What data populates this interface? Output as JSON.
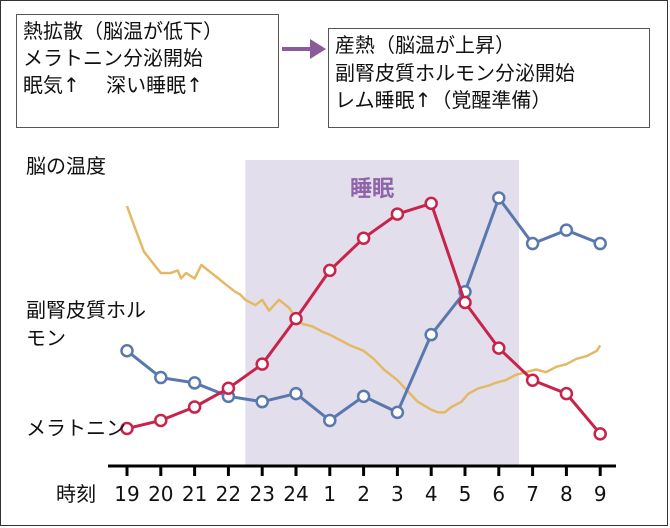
{
  "box_left": {
    "lines": [
      "熱拡散（脳温が低下）",
      "メラトニン分泌開始",
      "眠気↑　 深い睡眠↑"
    ]
  },
  "box_right": {
    "lines": [
      "産熱（脳温が上昇）",
      "副腎皮質ホルモン分泌開始",
      "レム睡眠↑（覚醒準備）"
    ]
  },
  "colors": {
    "arrow": "#8B5A9A",
    "sleep_band": "#E2DEEC",
    "sleep_label": "#8E63A8",
    "brain_temperature": "#E3B965",
    "cortisol": "#5878AE",
    "melatonin": "#C8234A",
    "axis": "#000000"
  },
  "chart_data": {
    "type": "line",
    "xlabel": "時刻",
    "categories": [
      "19",
      "20",
      "21",
      "22",
      "23",
      "24",
      "1",
      "2",
      "3",
      "4",
      "5",
      "6",
      "7",
      "8",
      "9"
    ],
    "shaded_region": {
      "label": "睡眠",
      "from_hour_offset": 3.5,
      "to_hour_offset": 11.6
    },
    "series": [
      {
        "name": "脳の温度",
        "marker": "none",
        "x": [
          0.0,
          0.2,
          0.5,
          0.75,
          1.0,
          1.3,
          1.5,
          1.6,
          1.75,
          2.0,
          2.2,
          2.4,
          2.5,
          2.7,
          2.9,
          3.2,
          3.35,
          3.5,
          3.8,
          4.0,
          4.2,
          4.35,
          4.5,
          4.8,
          5.0,
          5.2,
          5.5,
          5.8,
          6.0,
          6.3,
          6.6,
          7.0,
          7.3,
          7.6,
          8.0,
          8.3,
          8.6,
          9.0,
          9.2,
          9.4,
          9.6,
          9.9,
          10.1,
          10.4,
          10.7,
          10.9,
          11.2,
          11.5,
          11.8,
          12.1,
          12.4,
          12.7,
          13.0,
          13.3,
          13.6,
          13.9,
          14.0
        ],
        "y": [
          97,
          90,
          80,
          76,
          72,
          72,
          73,
          70,
          72,
          70,
          75,
          73,
          72,
          70,
          68,
          65,
          64,
          62,
          60,
          62,
          58,
          60,
          62,
          59,
          55,
          53,
          52,
          50,
          49,
          47,
          45,
          43,
          40,
          36,
          32,
          28,
          24,
          21,
          20,
          20,
          22,
          24,
          27,
          29,
          30,
          31,
          32,
          34,
          35,
          36,
          35,
          37,
          38,
          40,
          41,
          43,
          45
        ]
      },
      {
        "name": "副腎皮質ホルモン",
        "marker": "circle",
        "x": [
          0,
          1,
          2,
          3,
          4,
          5,
          6,
          7,
          8,
          9,
          10,
          11,
          12,
          13,
          14
        ],
        "y": [
          43,
          33,
          31,
          26,
          24,
          27,
          17,
          26,
          20,
          49,
          65,
          100,
          83,
          88,
          83
        ]
      },
      {
        "name": "メラトニン",
        "marker": "circle",
        "x": [
          0,
          1,
          2,
          3,
          4,
          5,
          6,
          7,
          8,
          9,
          10,
          11,
          12,
          13,
          14
        ],
        "y": [
          14,
          17,
          22,
          29,
          38,
          55,
          73,
          85,
          94,
          98,
          61,
          44,
          32,
          27,
          12
        ]
      }
    ]
  }
}
